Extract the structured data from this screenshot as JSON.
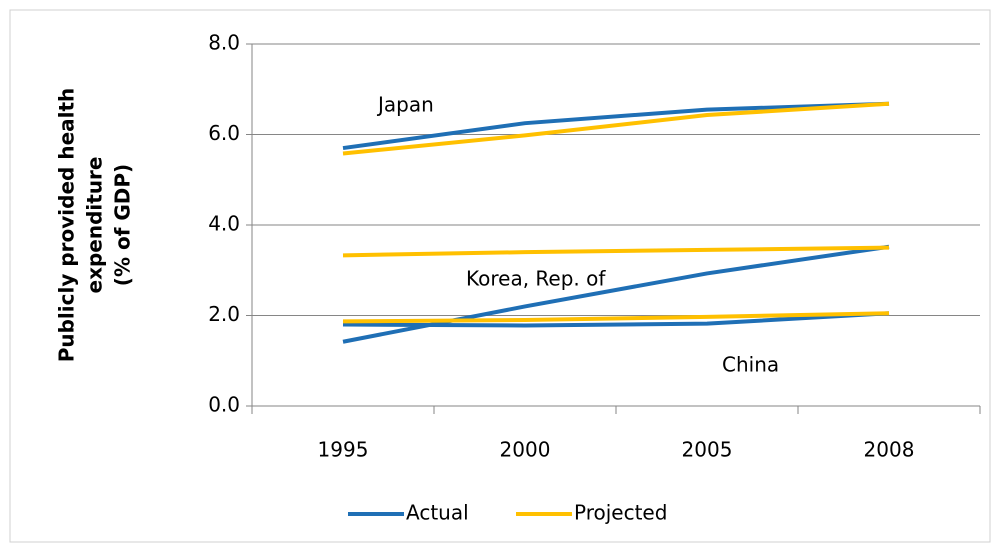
{
  "chart_data": {
    "type": "line",
    "y_label": [
      "Publicly provided health",
      "expenditure",
      "(% of GDP)"
    ],
    "categories": [
      "1995",
      "2000",
      "2005",
      "2008"
    ],
    "series": [
      {
        "name": "Actual",
        "color": "#1f6fb5",
        "lines": [
          [
            5.7,
            6.25,
            6.55,
            6.68
          ],
          [
            1.42,
            2.2,
            2.93,
            3.52
          ],
          [
            1.8,
            1.78,
            1.82,
            2.05
          ]
        ]
      },
      {
        "name": "Projected",
        "color": "#ffc000",
        "lines": [
          [
            5.58,
            5.98,
            6.43,
            6.68
          ],
          [
            3.33,
            3.4,
            3.45,
            3.5
          ],
          [
            1.87,
            1.9,
            1.97,
            2.05
          ]
        ]
      }
    ],
    "annotations": [
      "Japan",
      "Korea, Rep. of",
      "China"
    ],
    "ylim": [
      0,
      8
    ],
    "yticks": [
      {
        "value": 0,
        "label": "0.0"
      },
      {
        "value": 2,
        "label": "2.0"
      },
      {
        "value": 4,
        "label": "4.0"
      },
      {
        "value": 6,
        "label": "6.0"
      },
      {
        "value": 8,
        "label": "8.0"
      }
    ],
    "grid": true,
    "legend": "bottom"
  }
}
